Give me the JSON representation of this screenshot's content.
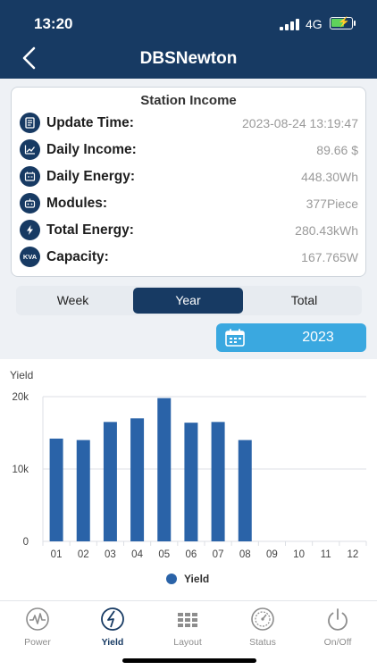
{
  "status_bar": {
    "time": "13:20",
    "network": "4G"
  },
  "header": {
    "title": "DBSNewton",
    "back_icon": "chevron-left-icon"
  },
  "station_income": {
    "title": "Station Income",
    "rows": [
      {
        "label": "Update Time:",
        "value": "2023-08-24 13:19:47",
        "icon": "document-icon"
      },
      {
        "label": "Daily Income:",
        "value": "89.66 $",
        "icon": "trend-icon"
      },
      {
        "label": "Daily Energy:",
        "value": "448.30Wh",
        "icon": "battery-icon"
      },
      {
        "label": "Modules:",
        "value": "377Piece",
        "icon": "module-icon"
      },
      {
        "label": "Total Energy:",
        "value": "280.43kWh",
        "icon": "bolt-icon"
      },
      {
        "label": "Capacity:",
        "value": "167.765W",
        "icon": "kva-icon",
        "icon_text": "KVA"
      }
    ]
  },
  "period_tabs": {
    "items": [
      "Week",
      "Year",
      "Total"
    ],
    "active": "Year"
  },
  "year_selector": {
    "value": "2023",
    "icon": "calendar-icon"
  },
  "chart_data": {
    "type": "bar",
    "ylabel": "Yield",
    "xlabel": "",
    "categories": [
      "01",
      "02",
      "03",
      "04",
      "05",
      "06",
      "07",
      "08",
      "09",
      "10",
      "11",
      "12"
    ],
    "series": [
      {
        "name": "Yield",
        "values": [
          14200,
          14000,
          16500,
          17000,
          19800,
          16400,
          16500,
          14000,
          0,
          0,
          0,
          0
        ]
      }
    ],
    "ylim": [
      0,
      20000
    ],
    "yticks": [
      0,
      10000,
      20000
    ],
    "ytick_labels": [
      "0",
      "10k",
      "20k"
    ],
    "grid": true,
    "legend": "bottom-center",
    "colors": {
      "bar": "#2a63a8"
    }
  },
  "tab_bar": {
    "items": [
      {
        "label": "Power",
        "icon": "power-gauge-icon"
      },
      {
        "label": "Yield",
        "icon": "yield-bolt-icon"
      },
      {
        "label": "Layout",
        "icon": "layout-grid-icon"
      },
      {
        "label": "Status",
        "icon": "status-gauge-icon"
      },
      {
        "label": "On/Off",
        "icon": "power-button-icon"
      }
    ],
    "active": "Yield"
  },
  "colors": {
    "primary": "#173a63",
    "accent": "#3aa8e0",
    "bar": "#2a63a8"
  }
}
